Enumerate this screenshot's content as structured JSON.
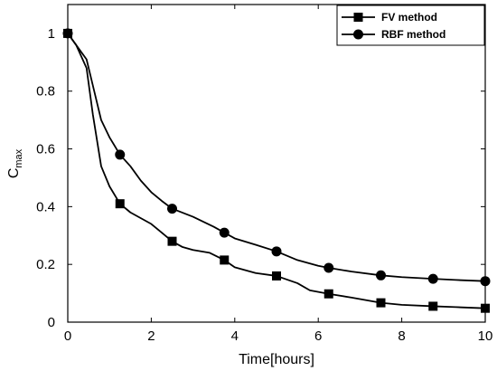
{
  "chart_data": {
    "type": "line",
    "xlabel": "Time[hours]",
    "ylabel": "C",
    "ylabel_sub": "max",
    "xlim": [
      0,
      10
    ],
    "ylim": [
      0,
      1.1
    ],
    "xticks": [
      0,
      2,
      4,
      6,
      8,
      10
    ],
    "yticks": [
      0,
      0.2,
      0.4,
      0.6,
      0.8,
      1
    ],
    "xtick_labels": [
      "0",
      "2",
      "4",
      "6",
      "8",
      "10"
    ],
    "ytick_labels": [
      "0",
      "0.2",
      "0.4",
      "0.6",
      "0.8",
      "1"
    ],
    "grid": false,
    "legend_position": "top-right",
    "series": [
      {
        "name": "FV method",
        "marker": "square",
        "color": "#000000",
        "line_x": [
          0,
          0.2,
          0.45,
          0.6,
          0.8,
          1.0,
          1.25,
          1.5,
          1.75,
          2.0,
          2.25,
          2.5,
          2.75,
          3.0,
          3.4,
          3.75,
          4.0,
          4.5,
          5.0,
          5.5,
          5.8,
          6.25,
          6.8,
          7.5,
          8.0,
          8.75,
          9.3,
          10.0
        ],
        "line_y": [
          1.0,
          0.96,
          0.88,
          0.72,
          0.54,
          0.47,
          0.41,
          0.38,
          0.36,
          0.34,
          0.31,
          0.28,
          0.26,
          0.25,
          0.24,
          0.215,
          0.19,
          0.17,
          0.16,
          0.135,
          0.11,
          0.098,
          0.085,
          0.067,
          0.06,
          0.055,
          0.052,
          0.048
        ],
        "marker_x": [
          0,
          1.25,
          2.5,
          3.75,
          5.0,
          6.25,
          7.5,
          8.75,
          10.0
        ],
        "marker_y": [
          1.0,
          0.41,
          0.28,
          0.215,
          0.16,
          0.098,
          0.067,
          0.055,
          0.048
        ]
      },
      {
        "name": "RBF method",
        "marker": "circle",
        "color": "#000000",
        "line_x": [
          0,
          0.2,
          0.45,
          0.6,
          0.8,
          1.0,
          1.25,
          1.5,
          1.75,
          2.0,
          2.25,
          2.5,
          3.0,
          3.5,
          3.75,
          4.0,
          4.5,
          5.0,
          5.5,
          6.0,
          6.25,
          6.8,
          7.5,
          8.0,
          8.75,
          9.3,
          10.0
        ],
        "line_y": [
          1.0,
          0.96,
          0.91,
          0.82,
          0.7,
          0.64,
          0.58,
          0.54,
          0.49,
          0.45,
          0.42,
          0.393,
          0.365,
          0.33,
          0.31,
          0.29,
          0.268,
          0.245,
          0.215,
          0.195,
          0.188,
          0.175,
          0.162,
          0.156,
          0.15,
          0.146,
          0.142
        ],
        "marker_x": [
          0,
          1.25,
          2.5,
          3.75,
          5.0,
          6.25,
          7.5,
          8.75,
          10.0
        ],
        "marker_y": [
          1.0,
          0.58,
          0.393,
          0.31,
          0.245,
          0.188,
          0.162,
          0.15,
          0.142
        ]
      }
    ]
  }
}
